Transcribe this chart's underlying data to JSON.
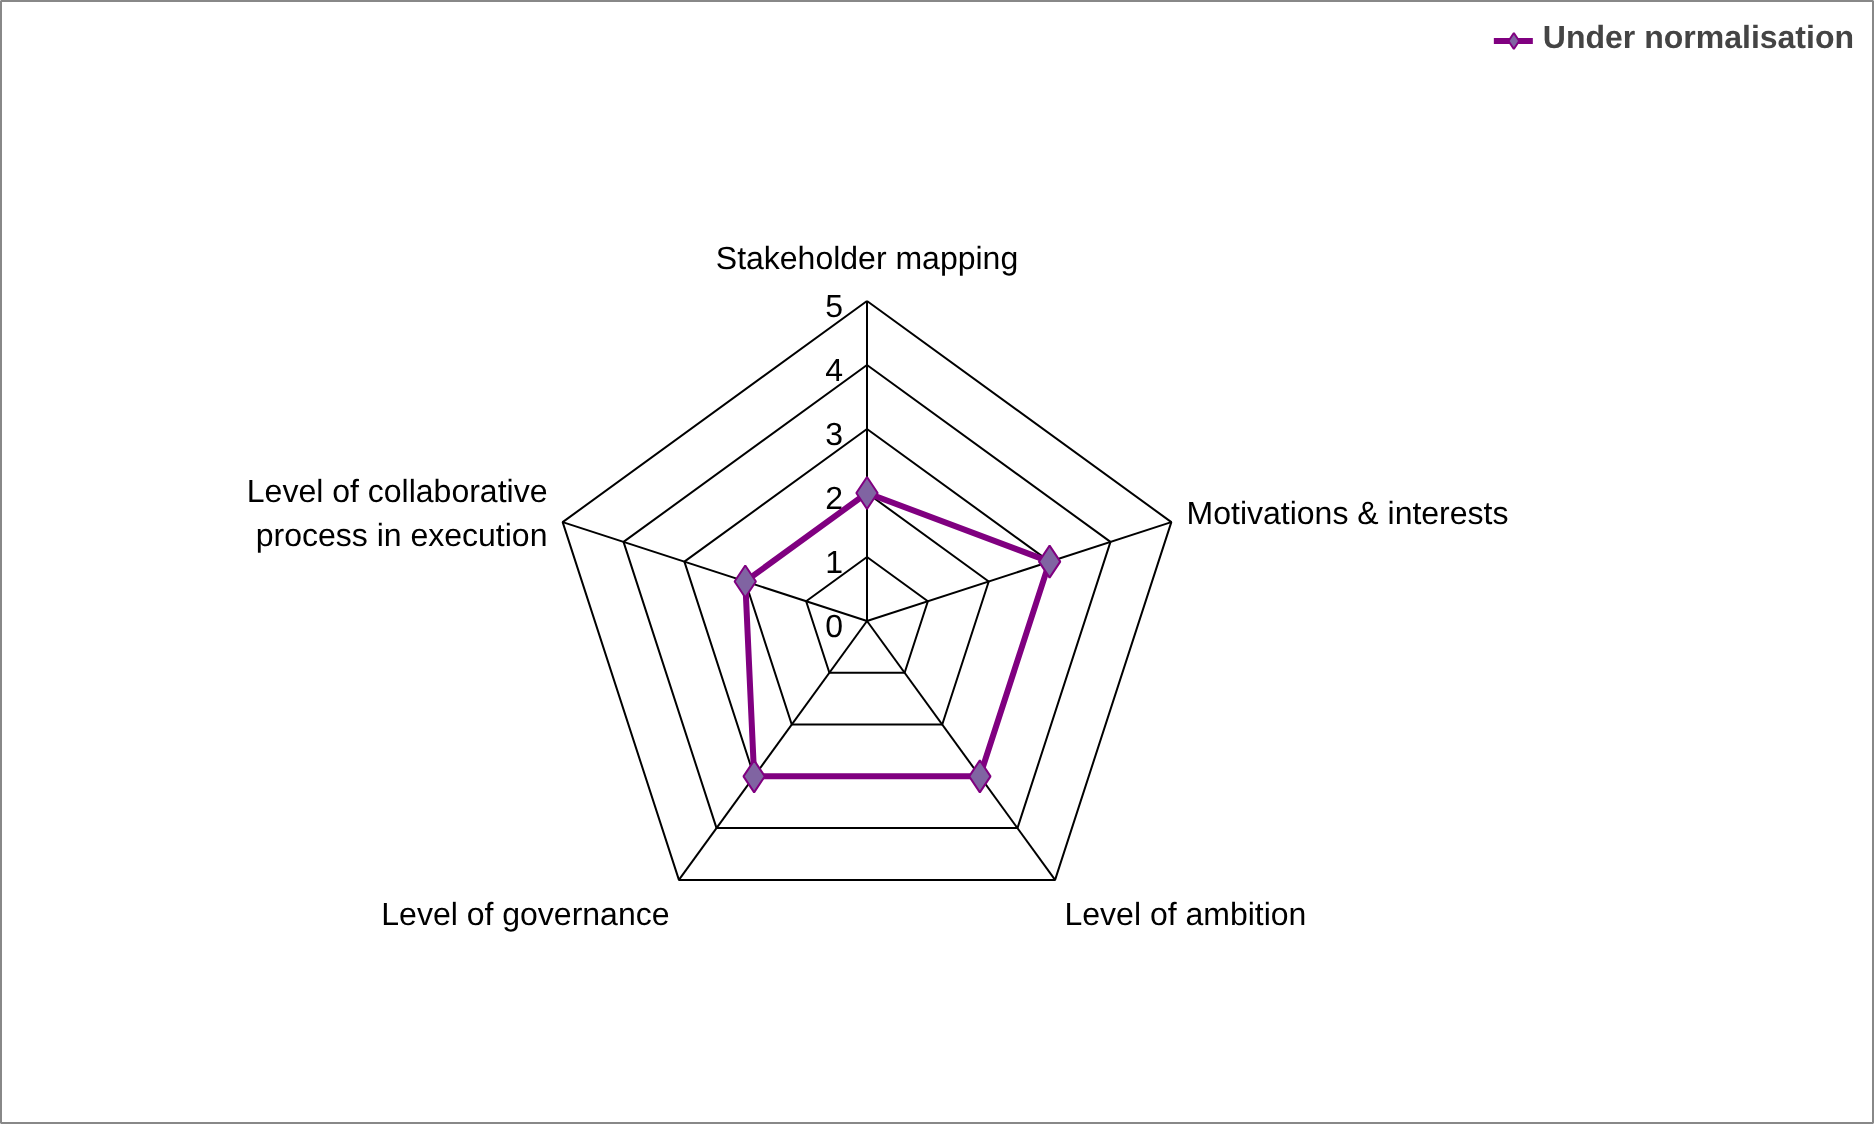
{
  "chart_data": {
    "type": "radar",
    "categories": [
      "Stakeholder mapping",
      "Motivations & interests",
      "Level of ambition",
      "Level of governance",
      "Level of collaborative\nprocess in execution"
    ],
    "series": [
      {
        "name": "Under normalisation",
        "color": "#800080",
        "values": [
          2,
          3,
          3,
          3,
          2
        ]
      }
    ],
    "ylim": [
      0,
      5
    ],
    "yticks": [
      0,
      1,
      2,
      3,
      4,
      5
    ],
    "grid": true,
    "legend": "top right",
    "marker": "diamond",
    "line_style": "solid"
  }
}
